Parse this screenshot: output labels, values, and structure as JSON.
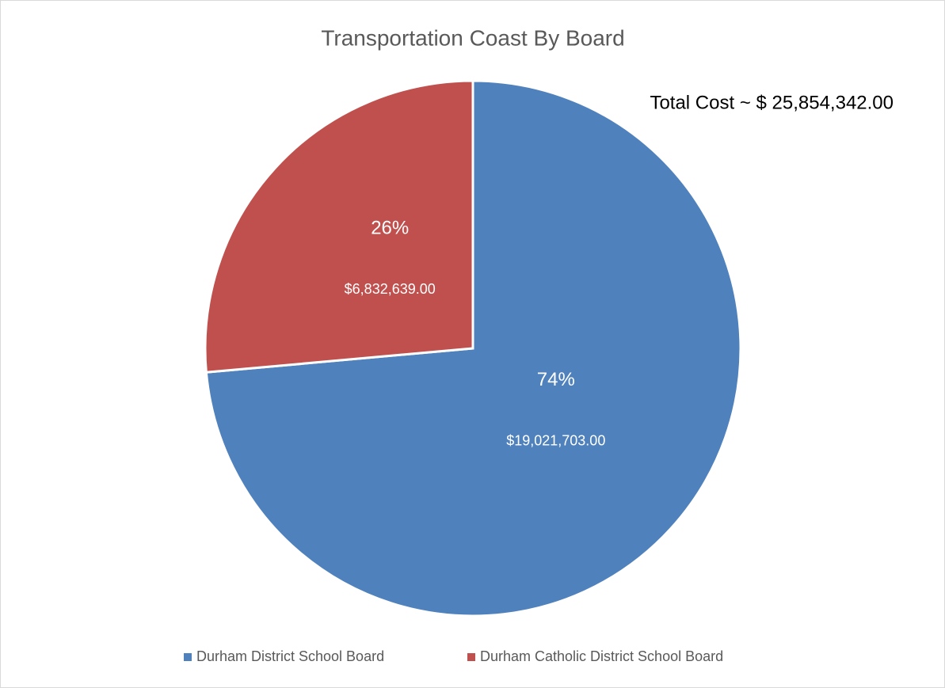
{
  "chart_data": {
    "type": "pie",
    "title": "Transportation Coast By Board",
    "annotation": "Total Cost ~ $ 25,854,342.00",
    "categories": [
      "Durham District School Board",
      "Durham Catholic District School Board"
    ],
    "values": [
      19021703,
      6832639
    ],
    "value_labels": [
      "$19,021,703.00",
      "$6,832,639.00"
    ],
    "percents": [
      74,
      26
    ],
    "percent_labels": [
      "74%",
      "26%"
    ],
    "colors": [
      "#4f81bd",
      "#c0504d"
    ],
    "legend": "bottom"
  }
}
